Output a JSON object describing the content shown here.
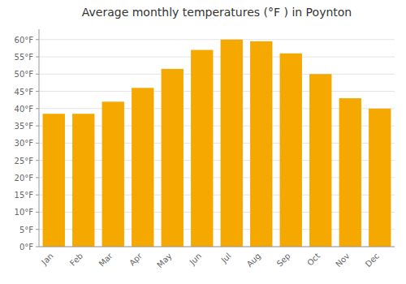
{
  "chart_data": {
    "type": "bar",
    "title": "Average monthly temperatures (°F ) in Poynton",
    "categories": [
      "Jan",
      "Feb",
      "Mar",
      "Apr",
      "May",
      "Jun",
      "Jul",
      "Aug",
      "Sep",
      "Oct",
      "Nov",
      "Dec"
    ],
    "values": [
      38.5,
      38.5,
      42,
      46,
      51.5,
      57,
      60,
      59.5,
      56,
      50,
      43,
      40
    ],
    "color": "#F5A800",
    "ylim": [
      0,
      63
    ],
    "yticks": [
      {
        "value": 0,
        "label": "0°F"
      },
      {
        "value": 5,
        "label": "5°F"
      },
      {
        "value": 10,
        "label": "10°F"
      },
      {
        "value": 15,
        "label": "15°F"
      },
      {
        "value": 20,
        "label": "20°F"
      },
      {
        "value": 25,
        "label": "25°F"
      },
      {
        "value": 30,
        "label": "30°F"
      },
      {
        "value": 35,
        "label": "35°F"
      },
      {
        "value": 40,
        "label": "40°F"
      },
      {
        "value": 45,
        "label": "45°F"
      },
      {
        "value": 50,
        "label": "50°F"
      },
      {
        "value": 55,
        "label": "55°F"
      },
      {
        "value": 60,
        "label": "60°F"
      }
    ],
    "grid": true
  }
}
